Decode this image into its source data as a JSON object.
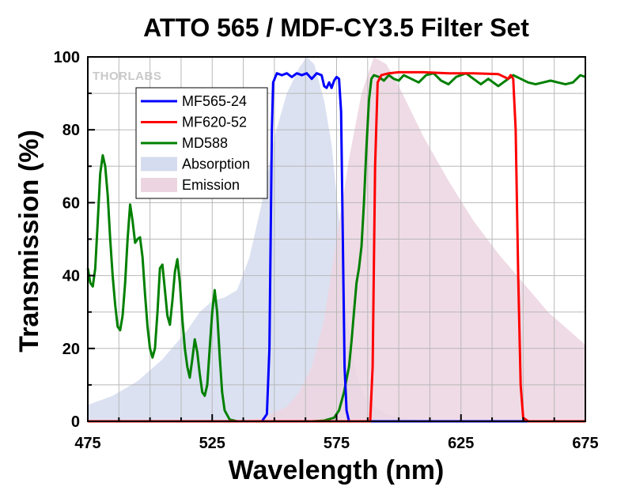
{
  "chart_data": {
    "type": "line",
    "title": "ATTO 565 / MDF-CY3.5 Filter Set",
    "xlabel": "Wavelength (nm)",
    "ylabel": "Transmission (%)",
    "xlim": [
      475,
      675
    ],
    "ylim": [
      0,
      100
    ],
    "xticks": [
      475,
      525,
      575,
      625,
      675
    ],
    "yticks": [
      0,
      20,
      40,
      60,
      80,
      100
    ],
    "grid": true,
    "legend_position": "upper-left",
    "watermark": "THORLABS",
    "series": [
      {
        "name": "MF565-24",
        "kind": "line",
        "color": "#0000ff",
        "points": [
          [
            475,
            0
          ],
          [
            545,
            0
          ],
          [
            547,
            2
          ],
          [
            548,
            20
          ],
          [
            549,
            80
          ],
          [
            549.5,
            93
          ],
          [
            551,
            95.5
          ],
          [
            553,
            95
          ],
          [
            555,
            95.5
          ],
          [
            557,
            94.5
          ],
          [
            559,
            95.5
          ],
          [
            561,
            95
          ],
          [
            563,
            95.5
          ],
          [
            565,
            94
          ],
          [
            567,
            95.5
          ],
          [
            569,
            95
          ],
          [
            570,
            92
          ],
          [
            571,
            91.5
          ],
          [
            572,
            93
          ],
          [
            573,
            91.5
          ],
          [
            574,
            93.5
          ],
          [
            575,
            94.5
          ],
          [
            576,
            94
          ],
          [
            576.8,
            85
          ],
          [
            577.5,
            50
          ],
          [
            578.2,
            15
          ],
          [
            579,
            3
          ],
          [
            580,
            0
          ],
          [
            675,
            0
          ]
        ]
      },
      {
        "name": "MF620-52",
        "kind": "line",
        "color": "#ff0000",
        "points": [
          [
            475,
            0
          ],
          [
            588.5,
            0
          ],
          [
            589.5,
            15
          ],
          [
            590.5,
            70
          ],
          [
            591.5,
            93
          ],
          [
            593,
            95
          ],
          [
            596,
            95.5
          ],
          [
            600,
            95.8
          ],
          [
            610,
            95.8
          ],
          [
            620,
            95.5
          ],
          [
            630,
            95.5
          ],
          [
            640,
            95.3
          ],
          [
            644,
            94
          ],
          [
            645,
            95
          ],
          [
            646,
            94
          ],
          [
            647,
            80
          ],
          [
            648,
            40
          ],
          [
            649,
            10
          ],
          [
            650,
            1
          ],
          [
            652,
            0
          ],
          [
            675,
            0
          ]
        ]
      },
      {
        "name": "MD588",
        "kind": "line",
        "color": "#008000",
        "points": [
          [
            475,
            42
          ],
          [
            476,
            38
          ],
          [
            477,
            37
          ],
          [
            478,
            42
          ],
          [
            479,
            55
          ],
          [
            480,
            68
          ],
          [
            481,
            73
          ],
          [
            482,
            70
          ],
          [
            483,
            62
          ],
          [
            484,
            50
          ],
          [
            485,
            40
          ],
          [
            486,
            32
          ],
          [
            487,
            26
          ],
          [
            488,
            25
          ],
          [
            489,
            29
          ],
          [
            490,
            38
          ],
          [
            491,
            50
          ],
          [
            492,
            59.5
          ],
          [
            493,
            55
          ],
          [
            494,
            49
          ],
          [
            495,
            50
          ],
          [
            496,
            50.5
          ],
          [
            497,
            45
          ],
          [
            498,
            35
          ],
          [
            499,
            26
          ],
          [
            500,
            20
          ],
          [
            501,
            17.5
          ],
          [
            502,
            20
          ],
          [
            503,
            30
          ],
          [
            504,
            42
          ],
          [
            505,
            43
          ],
          [
            506,
            36
          ],
          [
            507,
            29
          ],
          [
            508,
            26.5
          ],
          [
            509,
            33
          ],
          [
            510,
            41
          ],
          [
            511,
            44.5
          ],
          [
            512,
            38
          ],
          [
            513,
            28
          ],
          [
            514,
            20
          ],
          [
            515,
            15
          ],
          [
            516,
            12
          ],
          [
            517,
            17
          ],
          [
            518,
            22.5
          ],
          [
            519,
            19
          ],
          [
            520,
            13
          ],
          [
            521,
            8
          ],
          [
            522,
            7
          ],
          [
            523,
            10
          ],
          [
            524,
            20
          ],
          [
            525,
            30
          ],
          [
            526,
            36
          ],
          [
            527,
            30
          ],
          [
            528,
            18
          ],
          [
            529,
            8
          ],
          [
            530,
            3
          ],
          [
            532,
            0.5
          ],
          [
            535,
            0
          ],
          [
            565,
            0
          ],
          [
            570,
            0.2
          ],
          [
            574,
            1
          ],
          [
            576,
            3
          ],
          [
            578,
            8
          ],
          [
            580,
            15
          ],
          [
            581,
            22
          ],
          [
            582,
            30
          ],
          [
            583,
            38
          ],
          [
            584,
            42
          ],
          [
            585,
            48
          ],
          [
            586,
            60
          ],
          [
            587,
            75
          ],
          [
            588,
            88
          ],
          [
            589,
            94
          ],
          [
            590,
            95
          ],
          [
            592,
            94.5
          ],
          [
            594,
            93.5
          ],
          [
            596,
            95
          ],
          [
            598,
            94
          ],
          [
            600,
            93.5
          ],
          [
            602,
            95
          ],
          [
            605,
            94
          ],
          [
            608,
            93
          ],
          [
            611,
            95
          ],
          [
            614,
            95.5
          ],
          [
            617,
            93.5
          ],
          [
            620,
            92.5
          ],
          [
            623,
            94.5
          ],
          [
            627,
            95.5
          ],
          [
            630,
            94
          ],
          [
            633,
            92.5
          ],
          [
            636,
            94
          ],
          [
            640,
            92
          ],
          [
            643,
            93.5
          ],
          [
            646,
            95
          ],
          [
            649,
            94
          ],
          [
            652,
            93
          ],
          [
            655,
            92.5
          ],
          [
            658,
            93
          ],
          [
            661,
            93.5
          ],
          [
            664,
            93
          ],
          [
            667,
            92.5
          ],
          [
            670,
            93
          ],
          [
            673,
            95
          ],
          [
            675,
            94.5
          ]
        ]
      },
      {
        "name": "Absorption",
        "kind": "area",
        "color": "#d5dcef",
        "points": [
          [
            475,
            4.5
          ],
          [
            485,
            7
          ],
          [
            495,
            11
          ],
          [
            505,
            17
          ],
          [
            515,
            25
          ],
          [
            520,
            30
          ],
          [
            525,
            33
          ],
          [
            530,
            34
          ],
          [
            535,
            36
          ],
          [
            540,
            45
          ],
          [
            545,
            60
          ],
          [
            550,
            78
          ],
          [
            555,
            90
          ],
          [
            560,
            97
          ],
          [
            563,
            100
          ],
          [
            566,
            98
          ],
          [
            570,
            88
          ],
          [
            573,
            76
          ],
          [
            576,
            55
          ],
          [
            578,
            38
          ],
          [
            580,
            25
          ],
          [
            583,
            13
          ],
          [
            586,
            7
          ],
          [
            590,
            4
          ],
          [
            595,
            2
          ],
          [
            600,
            1
          ],
          [
            610,
            0.3
          ],
          [
            620,
            0
          ],
          [
            675,
            0
          ]
        ]
      },
      {
        "name": "Emission",
        "kind": "area",
        "color": "#ecd5e0",
        "points": [
          [
            475,
            0
          ],
          [
            535,
            0
          ],
          [
            545,
            1
          ],
          [
            555,
            4
          ],
          [
            560,
            8
          ],
          [
            565,
            15
          ],
          [
            570,
            28
          ],
          [
            575,
            50
          ],
          [
            580,
            72
          ],
          [
            585,
            90
          ],
          [
            590,
            100
          ],
          [
            595,
            98
          ],
          [
            600,
            92
          ],
          [
            610,
            78
          ],
          [
            620,
            66
          ],
          [
            630,
            55
          ],
          [
            640,
            46
          ],
          [
            650,
            38
          ],
          [
            660,
            30
          ],
          [
            670,
            24
          ],
          [
            675,
            21
          ]
        ]
      }
    ]
  }
}
